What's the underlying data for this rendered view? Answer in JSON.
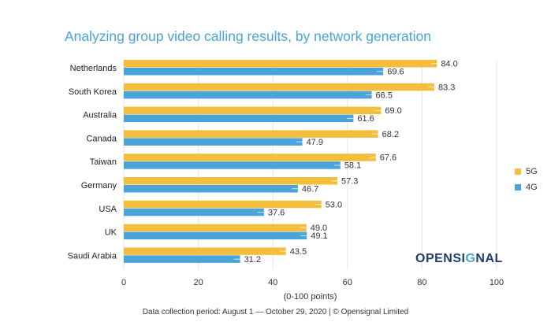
{
  "title": "Analyzing group video calling results, by network generation",
  "footnote": "Data collection period: August 1 — October 29, 2020 | © Opensignal Limited",
  "logo": {
    "part1": "OPENSI",
    "part2": "G",
    "part3": "NAL"
  },
  "colors": {
    "g5": "#f2be3c",
    "g4": "#4aa3d9",
    "grid": "#e6e6e6"
  },
  "chart_data": {
    "type": "bar",
    "orientation": "horizontal",
    "categories": [
      "Netherlands",
      "South Korea",
      "Australia",
      "Canada",
      "Taiwan",
      "Germany",
      "USA",
      "UK",
      "Saudi Arabia"
    ],
    "series": [
      {
        "name": "5G",
        "values": [
          84.0,
          83.3,
          69.0,
          68.2,
          67.6,
          57.3,
          53.0,
          49.0,
          43.5
        ]
      },
      {
        "name": "4G",
        "values": [
          69.6,
          66.5,
          61.6,
          47.9,
          58.1,
          46.7,
          37.6,
          49.1,
          31.2
        ]
      }
    ],
    "value_labels": {
      "5G": [
        "84.0",
        "83.3",
        "69.0",
        "68.2",
        "67.6",
        "57.3",
        "53.0",
        "49.0",
        "43.5"
      ],
      "4G": [
        "69.6",
        "66.5",
        "61.6",
        "47.9",
        "58.1",
        "46.7",
        "37.6",
        "49.1",
        "31.2"
      ]
    },
    "xlabel": "(0-100 points)",
    "xlim": [
      0,
      100
    ],
    "xticks": [
      "0",
      "20",
      "40",
      "60",
      "80",
      "100"
    ],
    "grid": true,
    "legend": "right"
  }
}
